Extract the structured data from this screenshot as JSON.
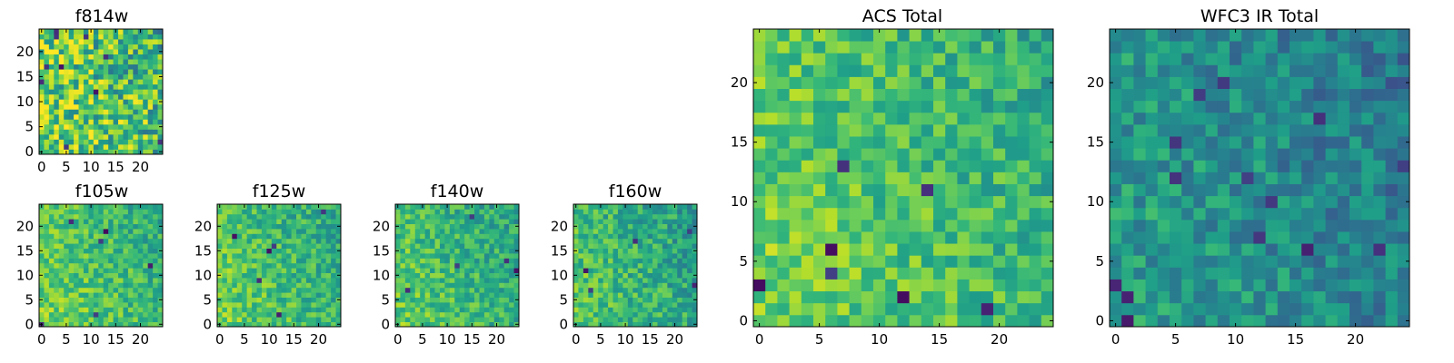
{
  "chart_data": [
    {
      "type": "heatmap",
      "title": "f814w",
      "grid": 25,
      "xticks": [
        0,
        5,
        10,
        15,
        20
      ],
      "yticks": [
        0,
        5,
        10,
        15,
        20
      ],
      "xlim": [
        -0.5,
        24.5
      ],
      "ylim": [
        -0.5,
        24.5
      ],
      "colormap": "viridis",
      "seed": 11,
      "base": 0.72,
      "noise": 0.3,
      "cold_count": 10
    },
    {
      "type": "heatmap",
      "title": "f105w",
      "grid": 25,
      "xticks": [
        0,
        5,
        10,
        15,
        20
      ],
      "yticks": [
        0,
        5,
        10,
        15,
        20
      ],
      "xlim": [
        -0.5,
        24.5
      ],
      "ylim": [
        -0.5,
        24.5
      ],
      "colormap": "viridis",
      "seed": 23,
      "base": 0.7,
      "noise": 0.16,
      "cold_count": 6
    },
    {
      "type": "heatmap",
      "title": "f125w",
      "grid": 25,
      "xticks": [
        0,
        5,
        10,
        15,
        20
      ],
      "yticks": [
        0,
        5,
        10,
        15,
        20
      ],
      "xlim": [
        -0.5,
        24.5
      ],
      "ylim": [
        -0.5,
        24.5
      ],
      "colormap": "viridis",
      "seed": 37,
      "base": 0.68,
      "noise": 0.16,
      "cold_count": 6
    },
    {
      "type": "heatmap",
      "title": "f140w",
      "grid": 25,
      "xticks": [
        0,
        5,
        10,
        15,
        20
      ],
      "yticks": [
        0,
        5,
        10,
        15,
        20
      ],
      "xlim": [
        -0.5,
        24.5
      ],
      "ylim": [
        -0.5,
        24.5
      ],
      "colormap": "viridis",
      "seed": 41,
      "base": 0.66,
      "noise": 0.16,
      "cold_count": 5
    },
    {
      "type": "heatmap",
      "title": "f160w",
      "grid": 25,
      "xticks": [
        0,
        5,
        10,
        15,
        20
      ],
      "yticks": [
        0,
        5,
        10,
        15,
        20
      ],
      "xlim": [
        -0.5,
        24.5
      ],
      "ylim": [
        -0.5,
        24.5
      ],
      "colormap": "viridis",
      "seed": 53,
      "base": 0.64,
      "noise": 0.17,
      "cold_count": 5
    },
    {
      "type": "heatmap",
      "title": "ACS Total",
      "grid": 25,
      "xticks": [
        0,
        5,
        10,
        15,
        20
      ],
      "yticks": [
        0,
        5,
        10,
        15,
        20
      ],
      "xlim": [
        -0.5,
        24.5
      ],
      "ylim": [
        -0.5,
        24.5
      ],
      "colormap": "viridis",
      "seed": 67,
      "base": 0.7,
      "noise": 0.16,
      "cold_count": 7
    },
    {
      "type": "heatmap",
      "title": "WFC3 IR Total",
      "grid": 25,
      "xticks": [
        0,
        5,
        10,
        15,
        20
      ],
      "yticks": [
        0,
        5,
        10,
        15,
        20
      ],
      "xlim": [
        -0.5,
        24.5
      ],
      "ylim": [
        -0.5,
        24.5
      ],
      "colormap": "viridis",
      "seed": 79,
      "base": 0.48,
      "noise": 0.16,
      "cold_count": 14
    }
  ]
}
